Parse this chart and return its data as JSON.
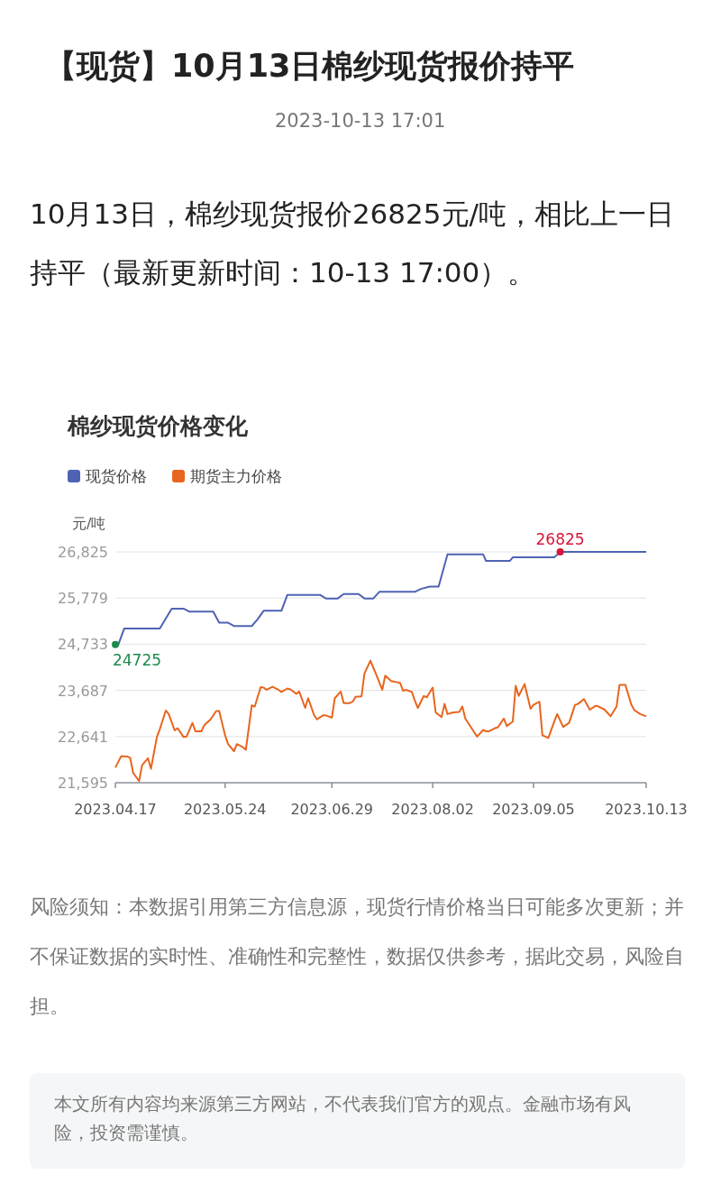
{
  "chart_data": {
    "type": "line",
    "title": "【现货】10月13日棉纱现货报价持平",
    "subtitle": "2023-10-13 17:01",
    "ylabel": "元/吨",
    "legend": "top left",
    "grid": "y",
    "marker": "none",
    "line_style": "solid",
    "xlim": [
      "2023-04-17",
      "2023-10-13"
    ],
    "xticks": [
      {
        "value": "2023-04-17",
        "label": "2023.04.17"
      },
      {
        "value": "2023-05-24",
        "label": "2023.05.24"
      },
      {
        "value": "2023-06-29",
        "label": "2023.06.29"
      },
      {
        "value": "2023-08-02",
        "label": "2023.08.02"
      },
      {
        "value": "2023-09-05",
        "label": "2023.09.05"
      },
      {
        "value": "2023-10-13",
        "label": "2023.10.13"
      }
    ],
    "ylim": [
      21595,
      26825
    ],
    "yticks": [
      {
        "value": 21595,
        "label": "21,595"
      },
      {
        "value": 22641,
        "label": "22,641"
      },
      {
        "value": 23687,
        "label": "23,687"
      },
      {
        "value": 24733,
        "label": "24,733"
      },
      {
        "value": 25779,
        "label": "25,779"
      },
      {
        "value": 26825,
        "label": "26,825"
      }
    ],
    "series": [
      {
        "name": "现货价格",
        "color": "#4f63b3",
        "x": [
          "2023-04-17",
          "2023-04-18",
          "2023-04-20",
          "2023-05-02",
          "2023-05-06",
          "2023-05-10",
          "2023-05-12",
          "2023-05-20",
          "2023-05-22",
          "2023-05-25",
          "2023-05-27",
          "2023-06-02",
          "2023-06-04",
          "2023-06-06",
          "2023-06-12",
          "2023-06-14",
          "2023-06-25",
          "2023-06-27",
          "2023-07-01",
          "2023-07-03",
          "2023-07-08",
          "2023-07-10",
          "2023-07-13",
          "2023-07-15",
          "2023-07-27",
          "2023-07-29",
          "2023-08-01",
          "2023-08-04",
          "2023-08-07",
          "2023-08-19",
          "2023-08-20",
          "2023-08-28",
          "2023-08-29",
          "2023-09-12",
          "2023-09-14",
          "2023-10-13"
        ],
        "values": [
          24725,
          24725,
          25090,
          25090,
          25540,
          25540,
          25470,
          25470,
          25220,
          25220,
          25145,
          25145,
          25300,
          25490,
          25490,
          25850,
          25850,
          25770,
          25770,
          25870,
          25870,
          25770,
          25770,
          25920,
          25920,
          25985,
          26040,
          26040,
          26770,
          26770,
          26620,
          26620,
          26700,
          26700,
          26825,
          26825
        ]
      },
      {
        "name": "期货主力价格",
        "color": "#e8651e",
        "x": [
          "2023-04-17",
          "2023-04-19",
          "2023-04-21",
          "2023-04-22",
          "2023-04-23",
          "2023-04-25",
          "2023-04-26",
          "2023-04-28",
          "2023-04-29",
          "2023-05-01",
          "2023-05-02",
          "2023-05-04",
          "2023-05-05",
          "2023-05-07",
          "2023-05-08",
          "2023-05-10",
          "2023-05-11",
          "2023-05-13",
          "2023-05-14",
          "2023-05-16",
          "2023-05-17",
          "2023-05-19",
          "2023-05-21",
          "2023-05-22",
          "2023-05-24",
          "2023-05-25",
          "2023-05-27",
          "2023-05-28",
          "2023-05-30",
          "2023-05-31",
          "2023-06-02",
          "2023-06-03",
          "2023-06-05",
          "2023-06-06",
          "2023-06-07",
          "2023-06-09",
          "2023-06-11",
          "2023-06-12",
          "2023-06-14",
          "2023-06-15",
          "2023-06-17",
          "2023-06-18",
          "2023-06-20",
          "2023-06-21",
          "2023-06-23",
          "2023-06-24",
          "2023-06-26",
          "2023-06-27",
          "2023-06-29",
          "2023-06-30",
          "2023-07-02",
          "2023-07-03",
          "2023-07-05",
          "2023-07-06",
          "2023-07-07",
          "2023-07-09",
          "2023-07-10",
          "2023-07-12",
          "2023-07-13",
          "2023-07-14",
          "2023-07-16",
          "2023-07-17",
          "2023-07-19",
          "2023-07-21",
          "2023-07-22",
          "2023-07-23",
          "2023-07-24",
          "2023-07-26",
          "2023-07-27",
          "2023-07-28",
          "2023-07-30",
          "2023-07-31",
          "2023-08-02",
          "2023-08-03",
          "2023-08-05",
          "2023-08-06",
          "2023-08-07",
          "2023-08-09",
          "2023-08-11",
          "2023-08-12",
          "2023-08-13",
          "2023-08-16",
          "2023-08-17",
          "2023-08-19",
          "2023-08-20",
          "2023-08-21",
          "2023-08-23",
          "2023-08-24",
          "2023-08-26",
          "2023-08-27",
          "2023-08-29",
          "2023-08-30",
          "2023-08-31",
          "2023-09-02",
          "2023-09-04",
          "2023-09-05",
          "2023-09-07",
          "2023-09-08",
          "2023-09-10",
          "2023-09-12",
          "2023-09-13",
          "2023-09-15",
          "2023-09-17",
          "2023-09-19",
          "2023-09-20",
          "2023-09-22",
          "2023-09-24",
          "2023-09-26",
          "2023-09-27",
          "2023-09-29",
          "2023-10-01",
          "2023-10-03",
          "2023-10-04",
          "2023-10-06",
          "2023-10-08",
          "2023-10-09",
          "2023-10-11",
          "2023-10-13"
        ],
        "values": [
          21940,
          22200,
          22190,
          22160,
          21820,
          21630,
          21990,
          22150,
          21910,
          22630,
          22810,
          23230,
          23150,
          22780,
          22830,
          22630,
          22640,
          22950,
          22760,
          22760,
          22900,
          23020,
          23220,
          23220,
          22670,
          22470,
          22310,
          22470,
          22400,
          22340,
          23350,
          23320,
          23760,
          23750,
          23700,
          23770,
          23700,
          23650,
          23730,
          23710,
          23610,
          23660,
          23290,
          23510,
          23130,
          23030,
          23120,
          23120,
          23070,
          23510,
          23660,
          23400,
          23400,
          23430,
          23540,
          23550,
          24070,
          24360,
          24200,
          24040,
          23700,
          24020,
          23900,
          23870,
          23860,
          23680,
          23700,
          23650,
          23450,
          23290,
          23560,
          23530,
          23750,
          23190,
          23080,
          23380,
          23150,
          23190,
          23200,
          23320,
          23050,
          22740,
          22640,
          22790,
          22760,
          22760,
          22830,
          22850,
          23050,
          22880,
          22980,
          23790,
          23560,
          23830,
          23270,
          23360,
          23430,
          22670,
          22610,
          22980,
          23150,
          22860,
          22950,
          23360,
          23380,
          23490,
          23250,
          23340,
          23320,
          23250,
          23100,
          23320,
          23810,
          23810,
          23360,
          23240,
          23150,
          23100
        ]
      }
    ],
    "annotations": [
      {
        "text": "24725",
        "x": "2023-04-17",
        "y": 24725
      },
      {
        "text": "26825",
        "x": "2023-09-14",
        "y": 26825
      },
      "10月13日，棉纱现货报价26825元/吨，相比上一日持平（最新更新时间：10-13 17:00）。",
      "棉纱现货价格变化",
      "风险须知：本数据引用第三方信息源，现货行情价格当日可能多次更新；并不保证数据的实时性、准确性和完整性，数据仅供参考，据此交易，风险自担。",
      "本文所有内容均来源第三方网站，不代表我们官方的观点。金融市场有风险，投资需谨慎。"
    ]
  }
}
